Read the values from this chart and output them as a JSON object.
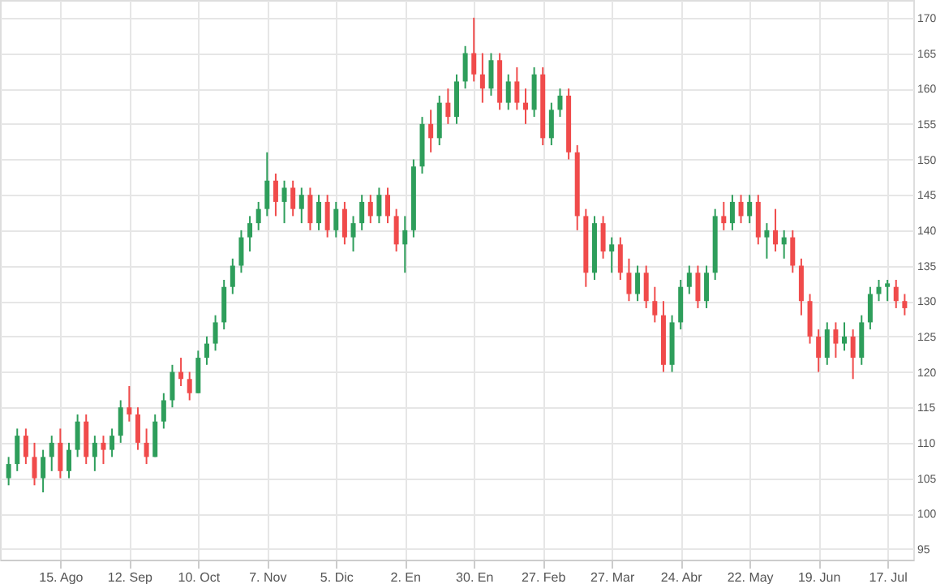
{
  "chart_data": {
    "type": "candlestick",
    "categories": [
      null,
      null,
      null,
      null,
      null,
      null,
      "15. Ago",
      null,
      null,
      null,
      null,
      null,
      null,
      null,
      "12. Sep",
      null,
      null,
      null,
      null,
      null,
      null,
      null,
      "10. Oct",
      null,
      null,
      null,
      null,
      null,
      null,
      null,
      "7. Nov",
      null,
      null,
      null,
      null,
      null,
      null,
      null,
      "5. Dic",
      null,
      null,
      null,
      null,
      null,
      null,
      null,
      "2. En",
      null,
      null,
      null,
      null,
      null,
      null,
      null,
      "30. En",
      null,
      null,
      null,
      null,
      null,
      null,
      null,
      "27. Feb",
      null,
      null,
      null,
      null,
      null,
      null,
      null,
      "27. Mar",
      null,
      null,
      null,
      null,
      null,
      null,
      null,
      "24. Abr",
      null,
      null,
      null,
      null,
      null,
      null,
      null,
      "22. May",
      null,
      null,
      null,
      null,
      null,
      null,
      null,
      "19. Jun",
      null,
      null,
      null,
      null,
      null,
      null,
      null,
      "17. Jul",
      null,
      null
    ],
    "ohlc": [
      [
        105,
        108,
        104,
        107
      ],
      [
        107,
        112,
        106,
        111
      ],
      [
        111,
        112,
        107,
        108
      ],
      [
        108,
        110,
        104,
        105
      ],
      [
        105,
        109,
        103,
        108
      ],
      [
        108,
        111,
        106,
        110
      ],
      [
        110,
        112,
        105,
        106
      ],
      [
        106,
        110,
        105,
        109
      ],
      [
        109,
        114,
        108,
        113
      ],
      [
        113,
        114,
        107,
        108
      ],
      [
        108,
        111,
        106,
        110
      ],
      [
        110,
        111,
        107,
        109
      ],
      [
        109,
        112,
        108,
        111
      ],
      [
        111,
        116,
        110,
        115
      ],
      [
        115,
        118,
        113,
        114
      ],
      [
        114,
        115,
        109,
        110
      ],
      [
        110,
        112,
        107,
        108
      ],
      [
        108,
        114,
        108,
        113
      ],
      [
        113,
        117,
        112,
        116
      ],
      [
        116,
        121,
        115,
        120
      ],
      [
        120,
        122,
        118,
        119
      ],
      [
        119,
        120,
        116,
        117
      ],
      [
        117,
        123,
        117,
        122
      ],
      [
        122,
        125,
        121,
        124
      ],
      [
        124,
        128,
        123,
        127
      ],
      [
        127,
        133,
        126,
        132
      ],
      [
        132,
        136,
        131,
        135
      ],
      [
        135,
        140,
        134,
        139
      ],
      [
        139,
        142,
        137,
        141
      ],
      [
        141,
        144,
        140,
        143
      ],
      [
        143,
        151,
        142,
        147
      ],
      [
        147,
        148,
        142,
        144
      ],
      [
        144,
        147,
        141,
        146
      ],
      [
        146,
        147,
        142,
        143
      ],
      [
        143,
        146,
        141,
        145
      ],
      [
        145,
        146,
        140,
        141
      ],
      [
        141,
        145,
        140,
        144
      ],
      [
        144,
        145,
        139,
        140
      ],
      [
        140,
        144,
        139,
        143
      ],
      [
        143,
        144,
        138,
        139
      ],
      [
        139,
        142,
        137,
        141
      ],
      [
        141,
        145,
        140,
        144
      ],
      [
        144,
        145,
        141,
        142
      ],
      [
        142,
        146,
        141,
        145
      ],
      [
        145,
        146,
        141,
        142
      ],
      [
        142,
        143,
        137,
        138
      ],
      [
        138,
        142,
        134,
        140
      ],
      [
        140,
        150,
        139,
        149
      ],
      [
        149,
        156,
        148,
        155
      ],
      [
        155,
        157,
        151,
        153
      ],
      [
        153,
        159,
        152,
        158
      ],
      [
        158,
        160,
        155,
        156
      ],
      [
        156,
        162,
        155,
        161
      ],
      [
        161,
        166,
        160,
        165
      ],
      [
        165,
        170,
        161,
        162
      ],
      [
        162,
        165,
        158,
        160
      ],
      [
        160,
        165,
        159,
        164
      ],
      [
        164,
        165,
        157,
        158
      ],
      [
        158,
        162,
        157,
        161
      ],
      [
        161,
        163,
        157,
        158
      ],
      [
        158,
        160,
        155,
        157
      ],
      [
        157,
        163,
        156,
        162
      ],
      [
        162,
        163,
        152,
        153
      ],
      [
        153,
        158,
        152,
        157
      ],
      [
        157,
        160,
        156,
        159
      ],
      [
        159,
        160,
        150,
        151
      ],
      [
        151,
        152,
        140,
        142
      ],
      [
        142,
        143,
        132,
        134
      ],
      [
        134,
        142,
        133,
        141
      ],
      [
        141,
        142,
        136,
        137
      ],
      [
        137,
        139,
        134,
        138
      ],
      [
        138,
        139,
        133,
        134
      ],
      [
        134,
        136,
        130,
        131
      ],
      [
        131,
        135,
        130,
        134
      ],
      [
        134,
        135,
        129,
        130
      ],
      [
        130,
        132,
        127,
        128
      ],
      [
        128,
        130,
        120,
        121
      ],
      [
        121,
        128,
        120,
        127
      ],
      [
        127,
        133,
        126,
        132
      ],
      [
        132,
        135,
        131,
        134
      ],
      [
        134,
        135,
        129,
        130
      ],
      [
        130,
        135,
        129,
        134
      ],
      [
        134,
        143,
        133,
        142
      ],
      [
        142,
        144,
        140,
        141
      ],
      [
        141,
        145,
        140,
        144
      ],
      [
        144,
        145,
        141,
        142
      ],
      [
        142,
        145,
        141,
        144
      ],
      [
        144,
        145,
        138,
        139
      ],
      [
        139,
        141,
        136,
        140
      ],
      [
        140,
        143,
        137,
        138
      ],
      [
        138,
        140,
        136,
        139
      ],
      [
        139,
        140,
        134,
        135
      ],
      [
        135,
        136,
        128,
        130
      ],
      [
        130,
        131,
        124,
        125
      ],
      [
        125,
        126,
        120,
        122
      ],
      [
        122,
        127,
        121,
        126
      ],
      [
        126,
        127,
        122,
        124
      ],
      [
        124,
        127,
        123,
        125
      ],
      [
        125,
        126,
        119,
        122
      ],
      [
        122,
        128,
        121,
        127
      ],
      [
        127,
        132,
        126,
        131
      ],
      [
        131,
        133,
        130,
        132
      ],
      [
        132,
        133,
        130,
        132.5
      ],
      [
        132,
        133,
        129,
        130
      ],
      [
        130,
        131,
        128,
        129
      ]
    ],
    "colors": [
      "#2e9e5b",
      "#2e9e5b",
      "#f04b4b",
      "#f04b4b",
      "#2e9e5b",
      "#2e9e5b",
      "#f04b4b",
      "#2e9e5b",
      "#2e9e5b",
      "#f04b4b",
      "#2e9e5b",
      "#f04b4b",
      "#2e9e5b",
      "#2e9e5b",
      "#f04b4b",
      "#f04b4b",
      "#f04b4b",
      "#2e9e5b",
      "#2e9e5b",
      "#2e9e5b",
      "#f04b4b",
      "#f04b4b",
      "#2e9e5b",
      "#2e9e5b",
      "#2e9e5b",
      "#2e9e5b",
      "#2e9e5b",
      "#2e9e5b",
      "#2e9e5b",
      "#2e9e5b",
      "#2e9e5b",
      "#f04b4b",
      "#2e9e5b",
      "#f04b4b",
      "#2e9e5b",
      "#f04b4b",
      "#2e9e5b",
      "#f04b4b",
      "#2e9e5b",
      "#f04b4b",
      "#2e9e5b",
      "#2e9e5b",
      "#f04b4b",
      "#2e9e5b",
      "#f04b4b",
      "#f04b4b",
      "#2e9e5b",
      "#2e9e5b",
      "#2e9e5b",
      "#f04b4b",
      "#2e9e5b",
      "#f04b4b",
      "#2e9e5b",
      "#2e9e5b",
      "#f04b4b",
      "#f04b4b",
      "#2e9e5b",
      "#f04b4b",
      "#2e9e5b",
      "#f04b4b",
      "#f04b4b",
      "#2e9e5b",
      "#f04b4b",
      "#2e9e5b",
      "#2e9e5b",
      "#f04b4b",
      "#f04b4b",
      "#f04b4b",
      "#2e9e5b",
      "#f04b4b",
      "#2e9e5b",
      "#f04b4b",
      "#f04b4b",
      "#2e9e5b",
      "#f04b4b",
      "#f04b4b",
      "#f04b4b",
      "#2e9e5b",
      "#2e9e5b",
      "#2e9e5b",
      "#f04b4b",
      "#2e9e5b",
      "#2e9e5b",
      "#f04b4b",
      "#2e9e5b",
      "#f04b4b",
      "#2e9e5b",
      "#f04b4b",
      "#2e9e5b",
      "#f04b4b",
      "#2e9e5b",
      "#f04b4b",
      "#f04b4b",
      "#f04b4b",
      "#f04b4b",
      "#2e9e5b",
      "#f04b4b",
      "#2e9e5b",
      "#f04b4b",
      "#2e9e5b",
      "#2e9e5b",
      "#2e9e5b",
      "#2e9e5b",
      "#f04b4b",
      "#f04b4b"
    ],
    "ylim": [
      93.5,
      172.5
    ],
    "yticks": [
      95,
      100,
      105,
      110,
      115,
      120,
      125,
      130,
      135,
      140,
      145,
      150,
      155,
      160,
      165,
      170
    ],
    "grid": true
  }
}
